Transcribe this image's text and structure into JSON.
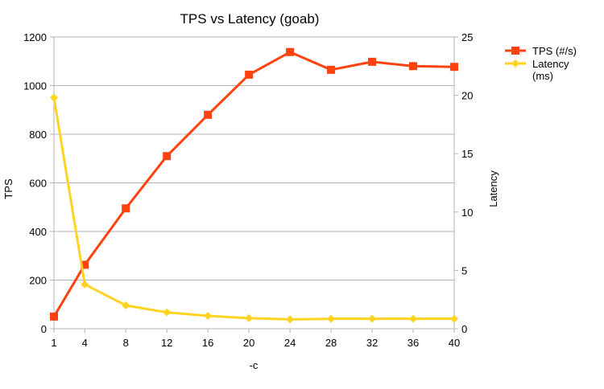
{
  "chart_data": {
    "type": "line",
    "title": "TPS vs Latency (goab)",
    "xlabel": "-c",
    "ylabel": "TPS",
    "y2label": "Latency",
    "x": [
      1,
      4,
      8,
      12,
      16,
      20,
      24,
      28,
      32,
      36,
      40
    ],
    "xlim": [
      1,
      40
    ],
    "ylim": [
      0,
      1200
    ],
    "y2lim": [
      0,
      25
    ],
    "yticks": [
      0,
      200,
      400,
      600,
      800,
      1000,
      1200
    ],
    "y2ticks": [
      0,
      5,
      10,
      15,
      20,
      25
    ],
    "grid": true,
    "legend_position": "right",
    "series": [
      {
        "name": "TPS (#/s)",
        "axis": "left",
        "color": "#ff420e",
        "marker": "square",
        "values": [
          50,
          263,
          495,
          710,
          880,
          1045,
          1138,
          1065,
          1098,
          1080,
          1077
        ]
      },
      {
        "name": "Latency (ms)",
        "legend_lines": [
          "Latency",
          "(ms)"
        ],
        "axis": "right",
        "color": "#ffd320",
        "marker": "diamond",
        "values": [
          19.8,
          3.8,
          2.0,
          1.4,
          1.1,
          0.9,
          0.8,
          0.85,
          0.85,
          0.85,
          0.85
        ]
      }
    ]
  }
}
